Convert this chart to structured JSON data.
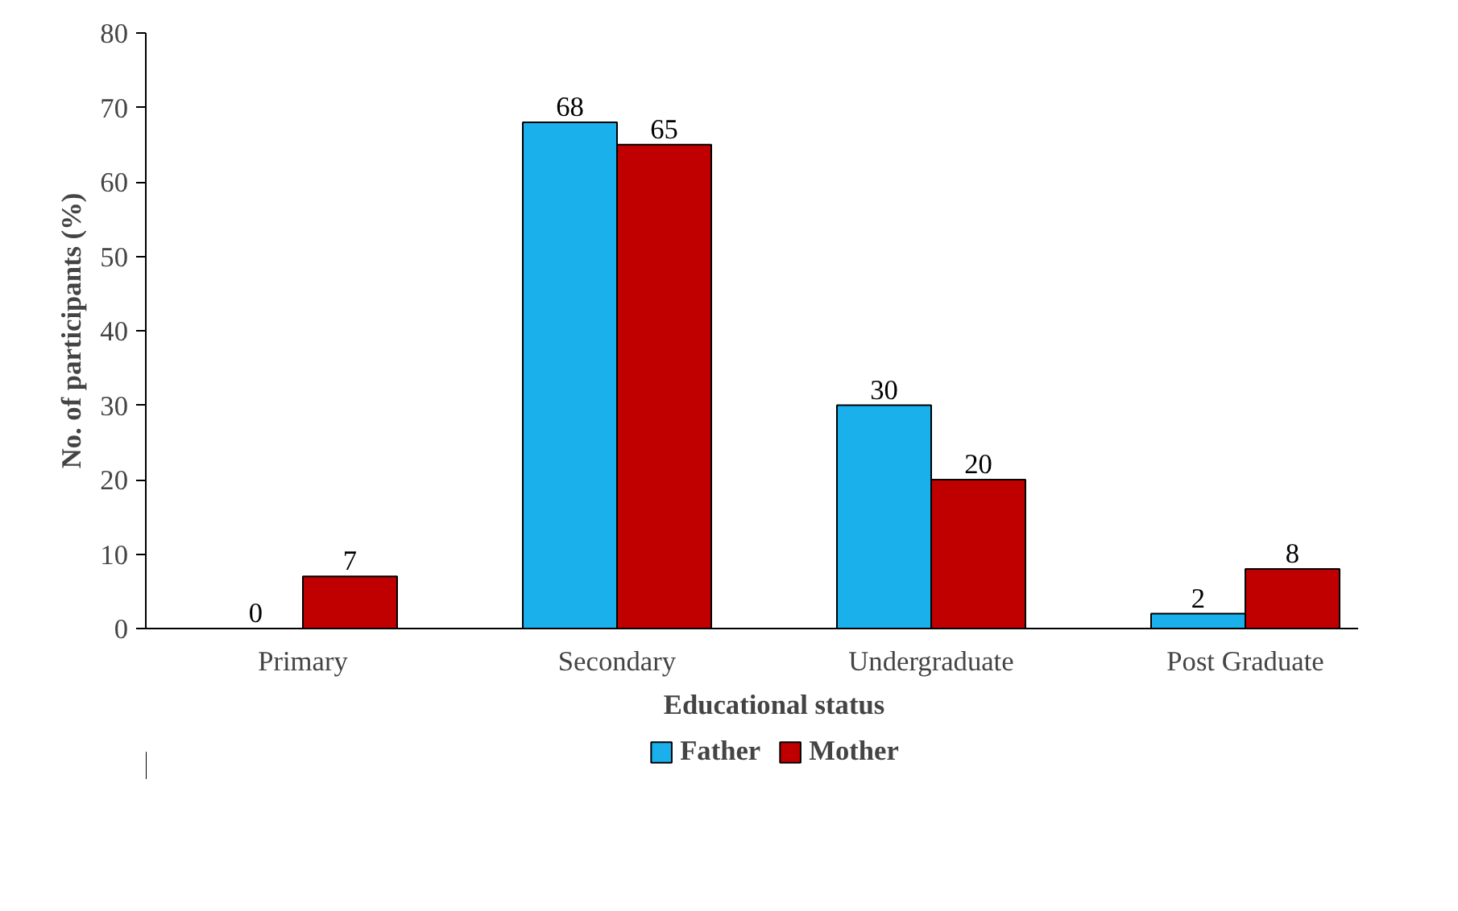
{
  "chart_data": {
    "type": "bar",
    "xlabel": "Educational status",
    "ylabel": "No. of participants (%)",
    "categories": [
      "Primary",
      "Secondary",
      "Undergraduate",
      "Post Graduate"
    ],
    "series": [
      {
        "name": "Father",
        "color": "#1ab0ec",
        "values": [
          0,
          68,
          30,
          2
        ]
      },
      {
        "name": "Mother",
        "color": "#c00000",
        "values": [
          7,
          65,
          20,
          8
        ]
      }
    ],
    "ylim": [
      0,
      80
    ],
    "yticks": [
      0,
      10,
      20,
      30,
      40,
      50,
      60,
      70,
      80
    ],
    "grid": false,
    "legend": "bottom",
    "data_labels": true
  }
}
